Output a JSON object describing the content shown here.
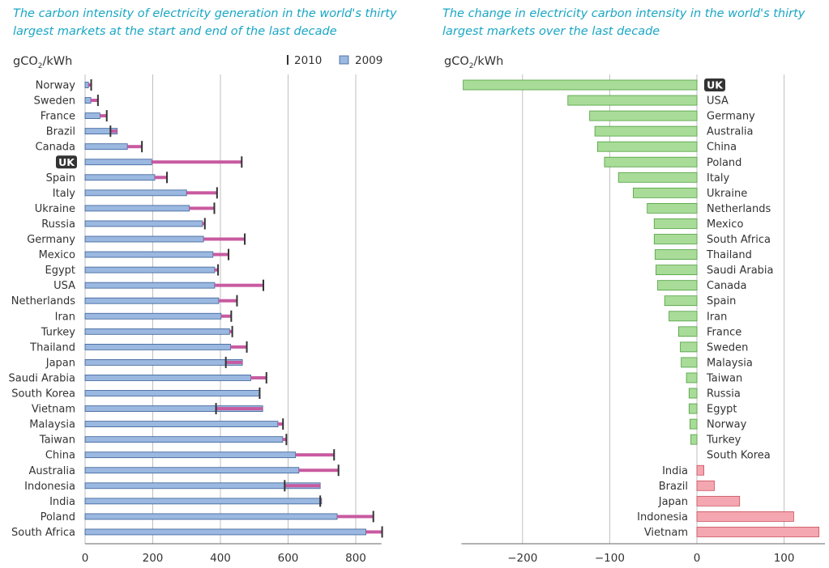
{
  "chart_data": [
    {
      "type": "bar",
      "title": "The carbon intensity of electricity generation in the world's thirty largest markets at the start and end of the last decade",
      "ylabel_prefix": "gCO",
      "ylabel_sub": "2",
      "ylabel_suffix": "/kWh",
      "xlim": [
        0,
        900
      ],
      "xticks": [
        0,
        200,
        400,
        600,
        800
      ],
      "grid": true,
      "legend": {
        "position": "top-right",
        "entries": [
          {
            "name": "2010",
            "marker": "tick"
          },
          {
            "name": "2009",
            "marker": "bar"
          }
        ]
      },
      "categories": [
        "Norway",
        "Sweden",
        "France",
        "Brazil",
        "Canada",
        "UK",
        "Spain",
        "Italy",
        "Ukraine",
        "Russia",
        "Germany",
        "Mexico",
        "Egypt",
        "USA",
        "Netherlands",
        "Iran",
        "Turkey",
        "Thailand",
        "Japan",
        "Saudi Arabia",
        "South Korea",
        "Vietnam",
        "Malaysia",
        "Taiwan",
        "China",
        "Australia",
        "Indonesia",
        "India",
        "Poland",
        "South Africa"
      ],
      "highlight": "UK",
      "series": [
        {
          "name": "2009",
          "values": [
            10,
            17,
            44,
            95,
            125,
            197,
            206,
            300,
            308,
            347,
            350,
            378,
            383,
            383,
            395,
            402,
            427,
            430,
            465,
            490,
            516,
            525,
            570,
            584,
            622,
            632,
            695,
            699,
            745,
            830
          ]
        },
        {
          "name": "2010",
          "values": [
            18,
            38,
            64,
            75,
            168,
            463,
            242,
            390,
            382,
            354,
            472,
            424,
            393,
            527,
            449,
            432,
            435,
            478,
            416,
            536,
            516,
            387,
            585,
            595,
            736,
            749,
            590,
            695,
            852,
            878
          ]
        }
      ]
    },
    {
      "type": "bar",
      "orientation": "horizontal",
      "title": "The change in electricity carbon intensity in the world's thirty largest markets over the last decade",
      "ylabel_prefix": "gCO",
      "ylabel_sub": "2",
      "ylabel_suffix": "/kWh",
      "xlim": [
        -270,
        140
      ],
      "xticks": [
        -200,
        -100,
        0,
        100
      ],
      "xtick_labels": [
        "−200",
        "−100",
        "0",
        "100"
      ],
      "grid": true,
      "categories": [
        "UK",
        "USA",
        "Germany",
        "Australia",
        "China",
        "Poland",
        "Italy",
        "Ukraine",
        "Netherlands",
        "Mexico",
        "South Africa",
        "Thailand",
        "Saudi Arabia",
        "Canada",
        "Spain",
        "Iran",
        "France",
        "Sweden",
        "Malaysia",
        "Taiwan",
        "Russia",
        "Egypt",
        "Norway",
        "Turkey",
        "South Korea",
        "India",
        "Brazil",
        "Japan",
        "Indonesia",
        "Vietnam"
      ],
      "highlight": "UK",
      "values": [
        -268,
        -148,
        -123,
        -117,
        -114,
        -106,
        -90,
        -73,
        -57,
        -49,
        -49,
        -48,
        -47,
        -45,
        -37,
        -32,
        -21,
        -19,
        -18,
        -12,
        -9,
        -9,
        -8,
        -7,
        0,
        8,
        20,
        49,
        111,
        140
      ],
      "colors": {
        "decrease_fill": "#a8dc98",
        "decrease_stroke": "#4f9f3f",
        "increase_fill": "#f4a7b0",
        "increase_stroke": "#c9505f"
      }
    }
  ],
  "colors": {
    "title": "#1aa6c4",
    "bar_2009": "#9ab8e0",
    "bar_2009_stroke": "#3a5f96",
    "bar_change": "#c85aa0",
    "tick_2010": "#333333",
    "grid": "#bfbfbf",
    "highlight_bg": "#333333"
  }
}
